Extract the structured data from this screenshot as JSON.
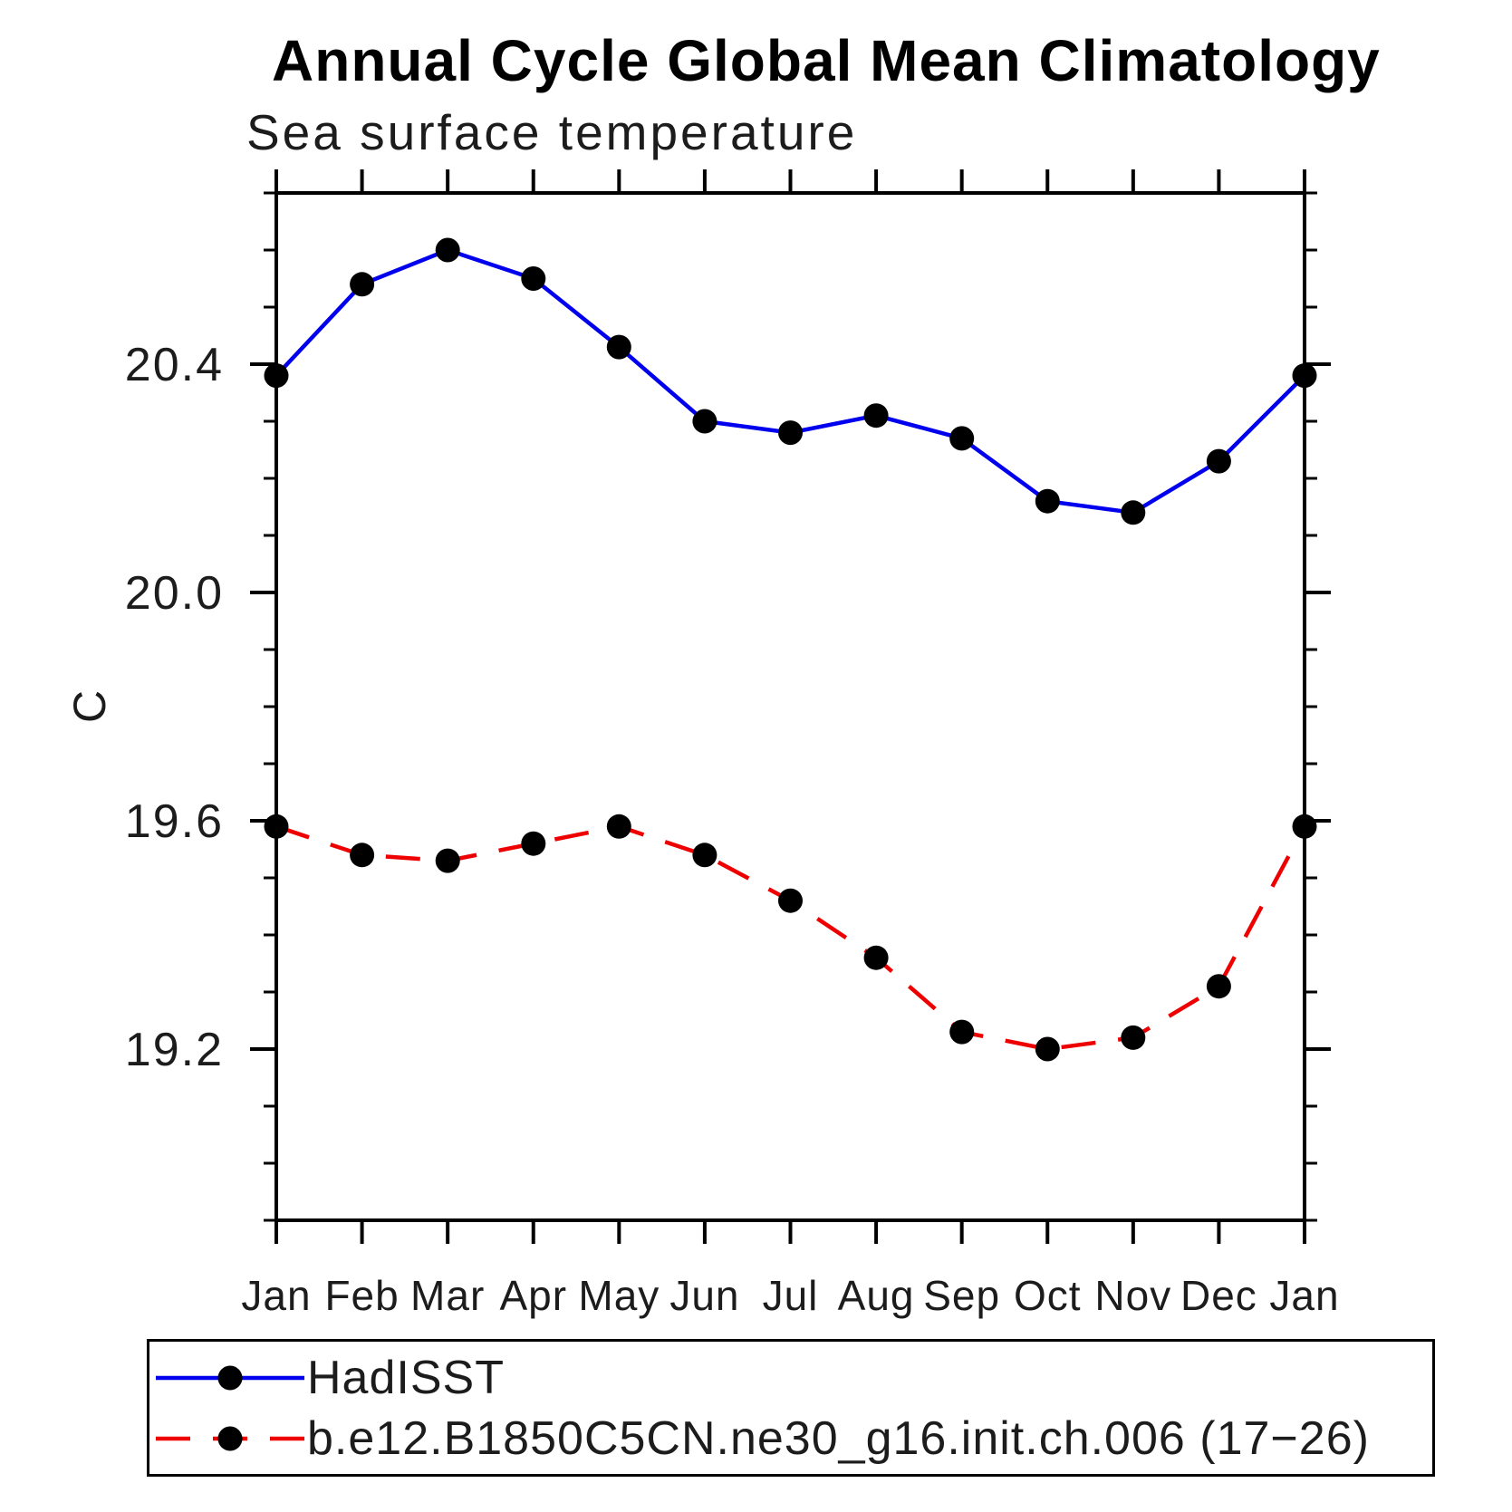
{
  "title": "Annual Cycle Global Mean Climatology",
  "subtitle": "Sea surface temperature",
  "chart_data": {
    "type": "line",
    "title": "Annual Cycle Global Mean Climatology",
    "subtitle": "Sea surface temperature",
    "ylabel": "C",
    "xlabel": "",
    "categories": [
      "Jan",
      "Feb",
      "Mar",
      "Apr",
      "May",
      "Jun",
      "Jul",
      "Aug",
      "Sep",
      "Oct",
      "Nov",
      "Dec",
      "Jan"
    ],
    "ylim": [
      18.9,
      20.7
    ],
    "yticks_major": [
      19.2,
      19.6,
      20.0,
      20.4
    ],
    "ytick_labels": [
      "19.2",
      "19.6",
      "20.0",
      "20.4"
    ],
    "yminor_step": 0.1,
    "grid": false,
    "legend_position": "bottom-left box",
    "axis_color": "#000000",
    "series": [
      {
        "name": "HadISST",
        "line_color": "#0000ee",
        "line_style": "solid",
        "marker": "filled-circle",
        "marker_color": "#000000",
        "values": [
          20.38,
          20.54,
          20.6,
          20.55,
          20.43,
          20.3,
          20.28,
          20.31,
          20.27,
          20.16,
          20.14,
          20.23,
          20.38
        ]
      },
      {
        "name": "b.e12.B1850C5CN.ne30_g16.init.ch.006 (17−26)",
        "line_color": "#ee0000",
        "line_style": "dashed",
        "marker": "filled-circle",
        "marker_color": "#000000",
        "values": [
          19.59,
          19.54,
          19.53,
          19.56,
          19.59,
          19.54,
          19.46,
          19.36,
          19.23,
          19.2,
          19.22,
          19.31,
          19.59
        ]
      }
    ]
  },
  "legend": {
    "items": [
      {
        "label": "HadISST"
      },
      {
        "label": "b.e12.B1850C5CN.ne30_g16.init.ch.006 (17−26)"
      }
    ]
  }
}
